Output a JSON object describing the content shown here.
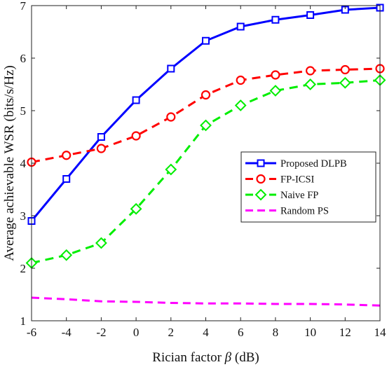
{
  "chart_data": {
    "type": "line",
    "title": "",
    "xlabel": "Rician factor β (dB)",
    "xlabel_parts": {
      "before": "Rician factor ",
      "symbol": "β",
      "after": " (dB)"
    },
    "ylabel": "Average achievable WSR (bits/s/Hz)",
    "xlim": [
      -6,
      14
    ],
    "ylim": [
      1,
      7
    ],
    "xticks": [
      -6,
      -4,
      -2,
      0,
      2,
      4,
      6,
      8,
      10,
      12,
      14
    ],
    "yticks": [
      1,
      2,
      3,
      4,
      5,
      6,
      7
    ],
    "grid": false,
    "legend_position": "center-right",
    "series": [
      {
        "name": "Proposed DLPB",
        "color": "#0000ff",
        "line_style": "solid",
        "marker": "square",
        "x": [
          -6,
          -4,
          -2,
          0,
          2,
          4,
          6,
          8,
          10,
          12,
          14
        ],
        "y": [
          2.9,
          3.7,
          4.5,
          5.2,
          5.8,
          6.33,
          6.6,
          6.73,
          6.82,
          6.92,
          6.96
        ]
      },
      {
        "name": "FP-ICSI",
        "color": "#ff0000",
        "line_style": "dashed",
        "marker": "circle",
        "x": [
          -6,
          -4,
          -2,
          0,
          2,
          4,
          6,
          8,
          10,
          12,
          14
        ],
        "y": [
          4.02,
          4.15,
          4.28,
          4.52,
          4.88,
          5.3,
          5.58,
          5.68,
          5.76,
          5.78,
          5.8
        ]
      },
      {
        "name": "Naive FP",
        "color": "#00ee00",
        "line_style": "dashed",
        "marker": "diamond",
        "x": [
          -6,
          -4,
          -2,
          0,
          2,
          4,
          6,
          8,
          10,
          12,
          14
        ],
        "y": [
          2.1,
          2.25,
          2.48,
          3.13,
          3.88,
          4.72,
          5.1,
          5.38,
          5.5,
          5.53,
          5.58
        ]
      },
      {
        "name": "Random PS",
        "color": "#ff00ff",
        "line_style": "dashed",
        "marker": "none",
        "x": [
          -6,
          -4,
          -2,
          0,
          2,
          4,
          6,
          8,
          10,
          12,
          14
        ],
        "y": [
          1.44,
          1.41,
          1.37,
          1.36,
          1.34,
          1.33,
          1.33,
          1.32,
          1.32,
          1.31,
          1.29
        ]
      }
    ]
  }
}
